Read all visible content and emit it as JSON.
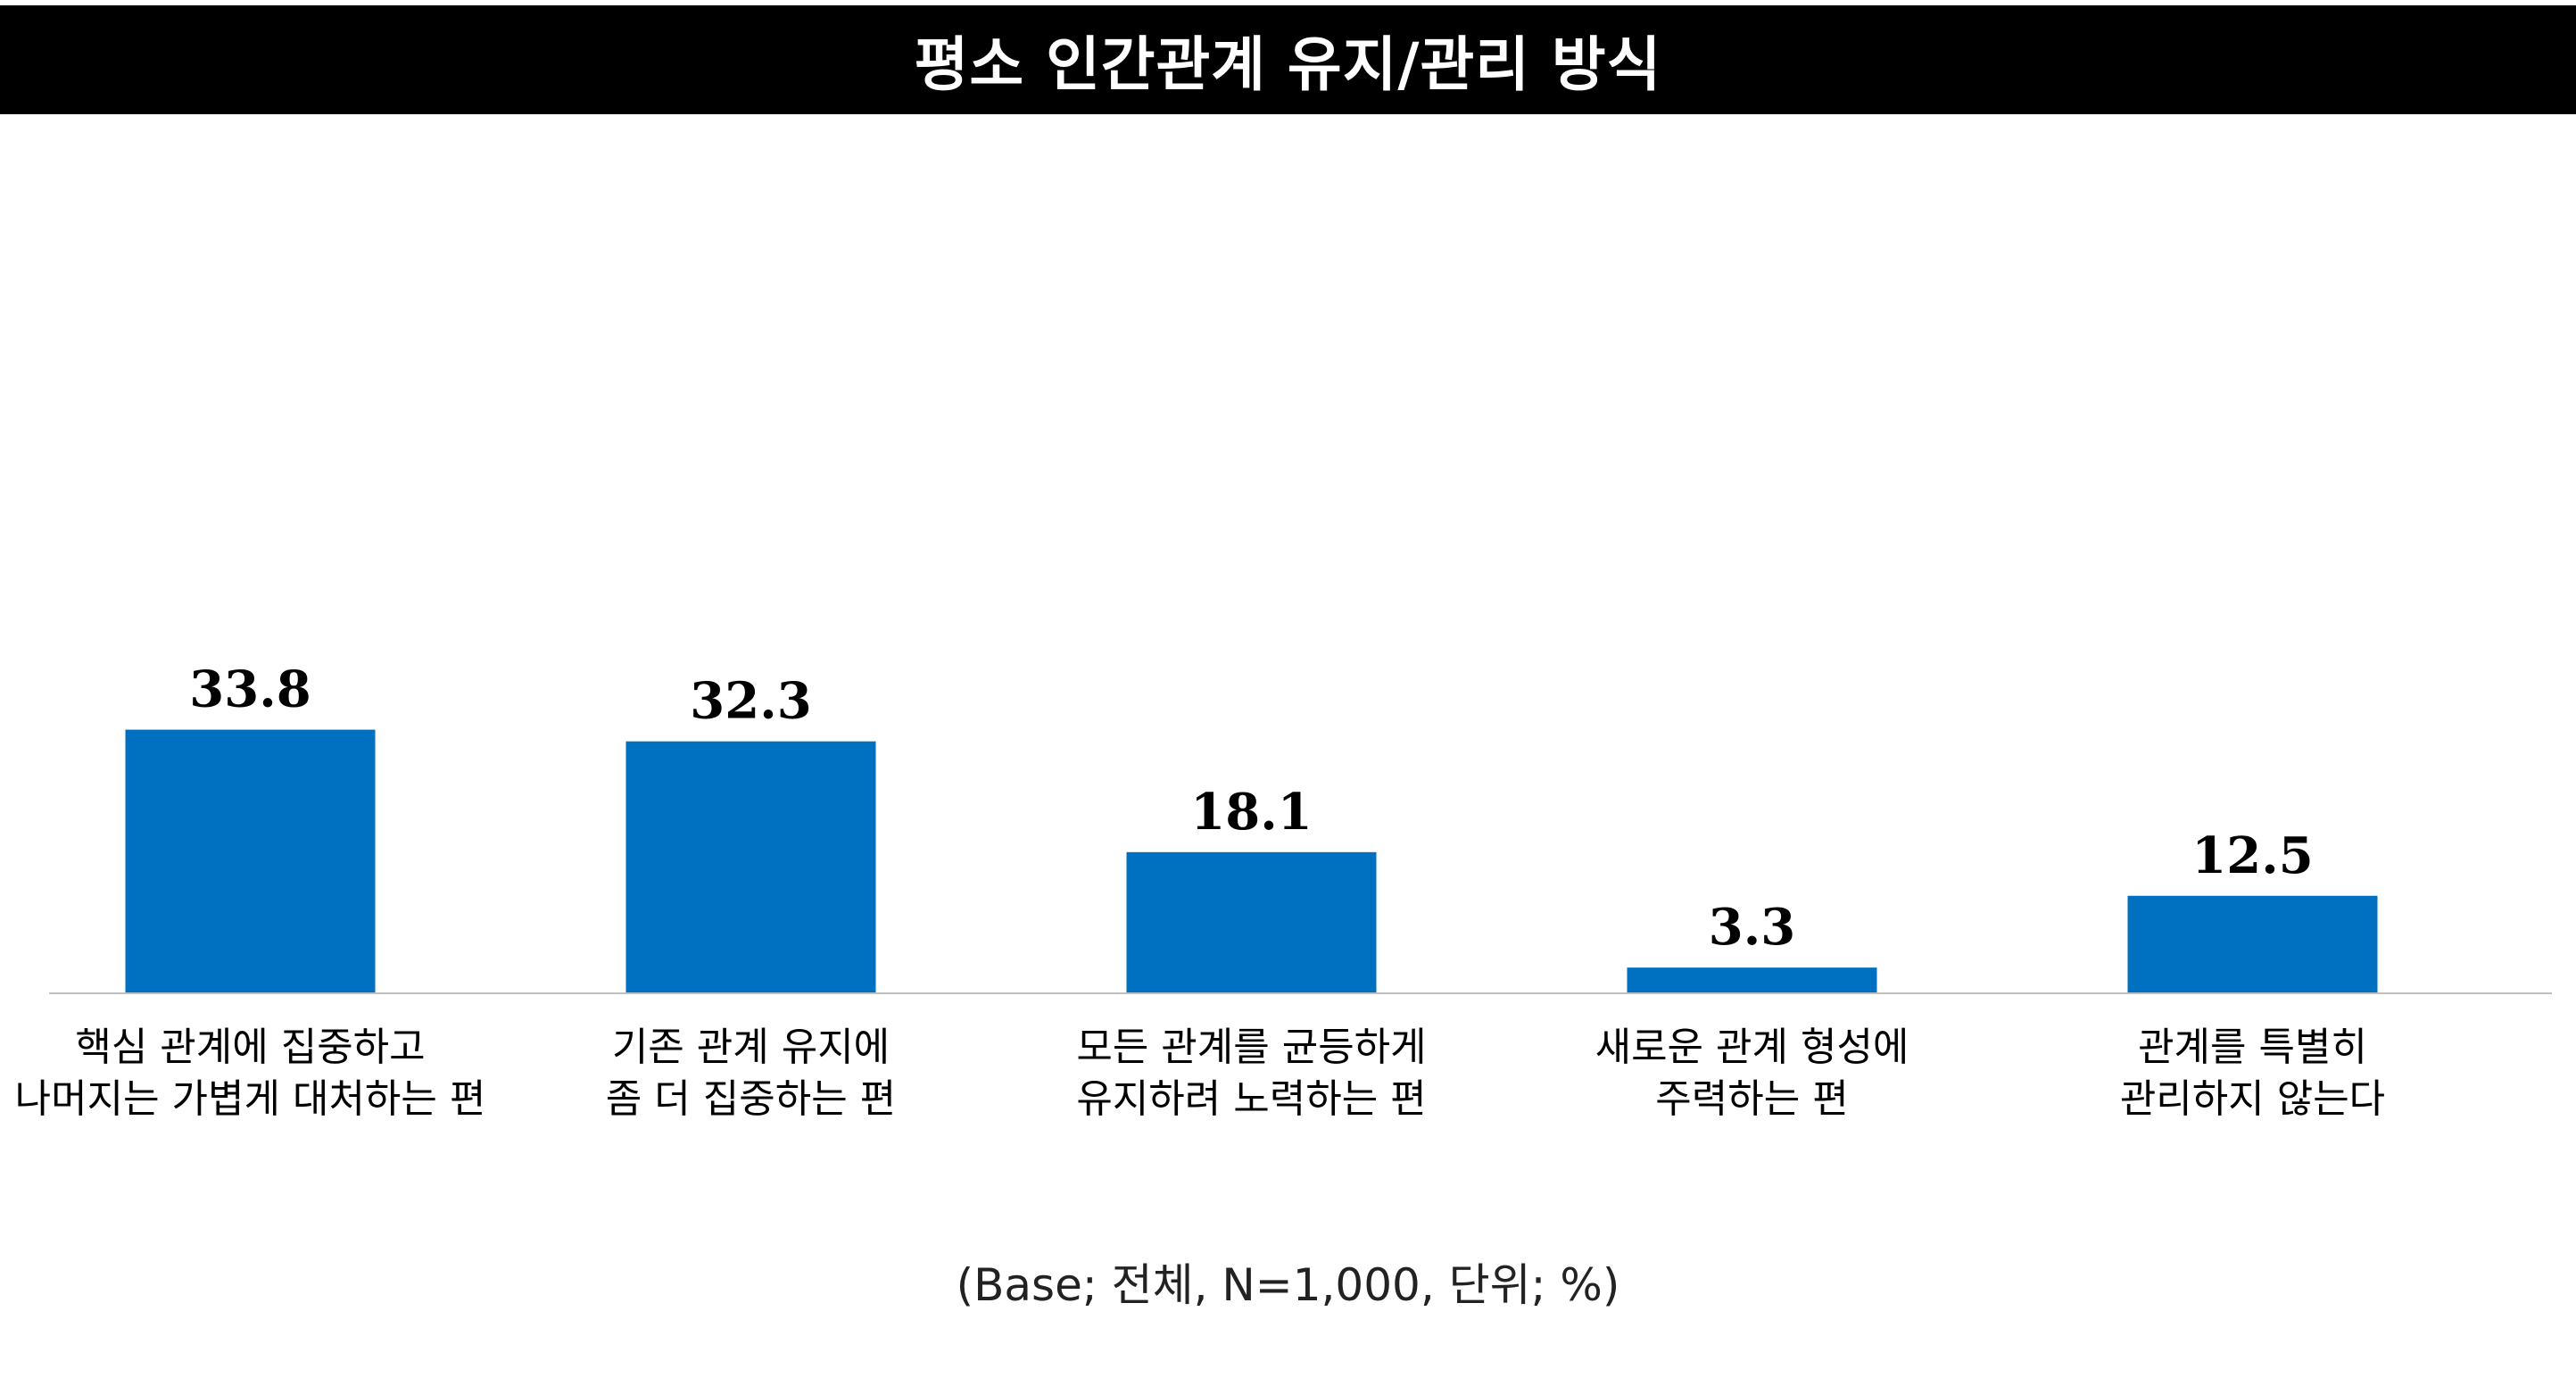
{
  "header": {
    "title": "평소 인간관계 유지/관리 방식"
  },
  "footnote": "(Base; 전체, N=1,000, 단위; %)",
  "colors": {
    "bar": "#0070C0",
    "title_bg": "#000000",
    "title_text": "#FFFFFF",
    "baseline": "#BFBFBF"
  },
  "chart_data": {
    "type": "bar",
    "categories": [
      [
        "핵심 관계에 집중하고",
        "나머지는 가볍게 대처하는 편"
      ],
      [
        "기존 관계 유지에",
        "좀 더 집중하는 편"
      ],
      [
        "모든 관계를 균등하게",
        "유지하려 노력하는 편"
      ],
      [
        "새로운 관계 형성에",
        "주력하는 편"
      ],
      [
        "관계를 특별히",
        "관리하지 않는다"
      ]
    ],
    "values": [
      33.8,
      32.3,
      18.1,
      3.3,
      12.5
    ],
    "data_labels": [
      "33.8",
      "32.3",
      "18.1",
      "3.3",
      "12.5"
    ],
    "ylim": [
      0,
      80
    ],
    "grid": false,
    "legend": "none"
  }
}
